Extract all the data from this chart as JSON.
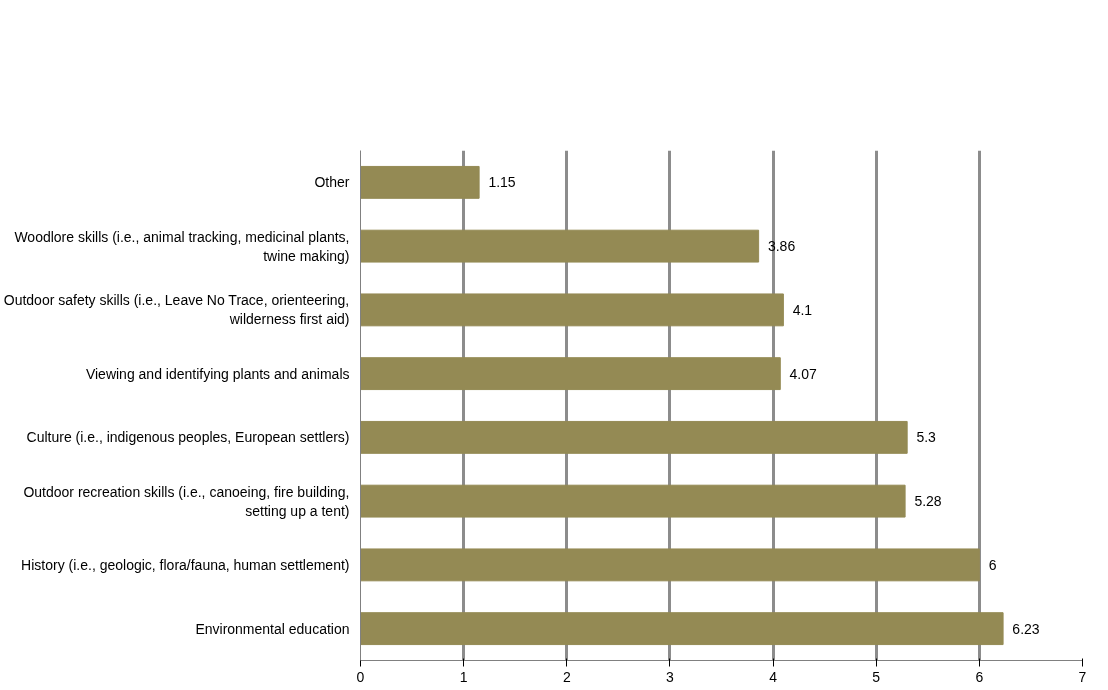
{
  "chart_data": {
    "type": "bar",
    "orientation": "horizontal",
    "categories": [
      "Other",
      "Woodlore skills (i.e., animal tracking, medicinal plants, twine making)",
      "Outdoor safety skills (i.e., Leave No Trace, orienteering, wilderness first aid)",
      "Viewing and identifying plants and animals",
      "Culture (i.e., indigenous peoples, European settlers)",
      "Outdoor recreation skills (i.e., canoeing, fire building, setting up a tent)",
      "History (i.e., geologic, flora/fauna, human settlement)",
      "Environmental education"
    ],
    "values": [
      1.15,
      3.86,
      4.1,
      4.07,
      5.3,
      5.28,
      6,
      6.23
    ],
    "color": "#948a54",
    "xlim": [
      0,
      7
    ],
    "xticks": [
      0,
      1,
      2,
      3,
      4,
      5,
      6,
      7
    ],
    "grid": "x",
    "data_labels": true
  }
}
